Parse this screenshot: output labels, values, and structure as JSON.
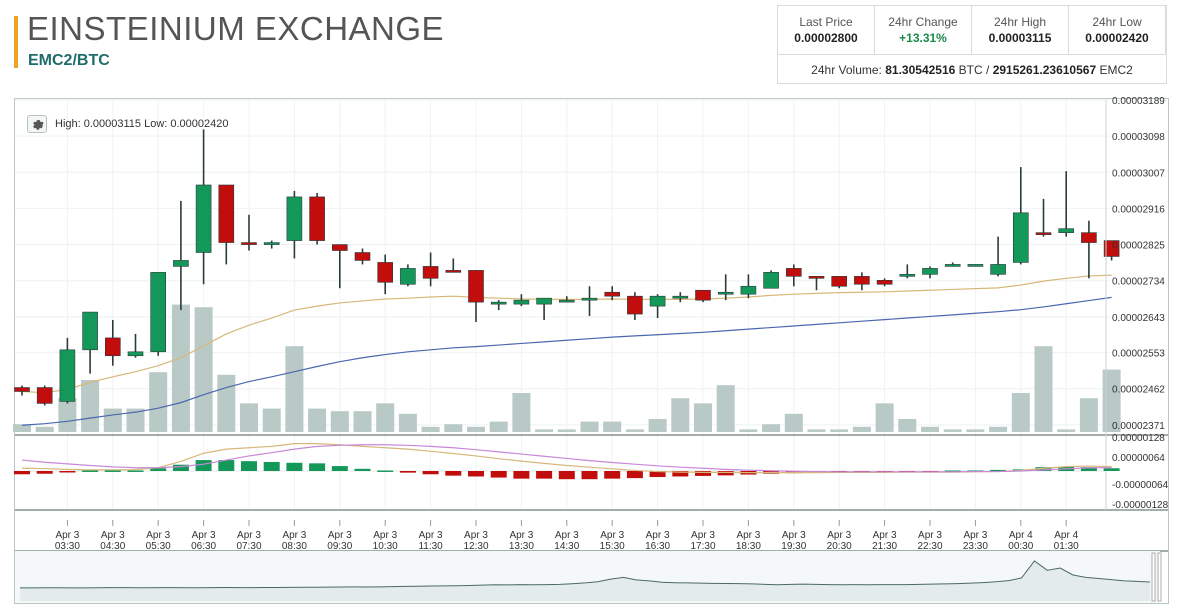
{
  "header": {
    "title": "EINSTEINIUM EXCHANGE",
    "pair": "EMC2/BTC"
  },
  "stats": {
    "items": [
      {
        "label": "Last Price",
        "value": "0.00002800"
      },
      {
        "label": "24hr Change",
        "value": "+13.31%"
      },
      {
        "label": "24hr High",
        "value": "0.00003115"
      },
      {
        "label": "24hr Low",
        "value": "0.00002420"
      }
    ],
    "volume_label": "24hr Volume:",
    "volume_btc": "81.30542516",
    "volume_btc_unit": "BTC",
    "volume_sep": "/",
    "volume_emc2": "2915261.23610567",
    "volume_emc2_unit": "EMC2"
  },
  "colors": {
    "up": "#13985a",
    "down": "#c20d0d",
    "volume": "#b8c9c6",
    "ma_fast": "#d7b87a",
    "ma_slow": "#4a68b0",
    "macd_signal": "#c888d8",
    "accent": "#f0a21f"
  },
  "chart_data": {
    "type": "candlestick",
    "hl_label": "High: 0.00003115  Low: 0.00002420",
    "price_axis_ticks": [
      "0.00003189",
      "0.00003098",
      "0.00003007",
      "0.00002916",
      "0.00002825",
      "0.00002734",
      "0.00002643",
      "0.00002553",
      "0.00002462",
      "0.00002371"
    ],
    "price_range": [
      2.348e-05,
      3.189e-05
    ],
    "macd_axis_ticks": [
      "0.00000128",
      "0.00000064",
      "-0.00000064",
      "-0.00000128"
    ],
    "macd_range": [
      -1.28e-06,
      1.28e-06
    ],
    "time_labels": [
      {
        "d": "Apr 3",
        "t": "03:30"
      },
      {
        "d": "Apr 3",
        "t": "04:30"
      },
      {
        "d": "Apr 3",
        "t": "05:30"
      },
      {
        "d": "Apr 3",
        "t": "06:30"
      },
      {
        "d": "Apr 3",
        "t": "07:30"
      },
      {
        "d": "Apr 3",
        "t": "08:30"
      },
      {
        "d": "Apr 3",
        "t": "09:30"
      },
      {
        "d": "Apr 3",
        "t": "10:30"
      },
      {
        "d": "Apr 3",
        "t": "11:30"
      },
      {
        "d": "Apr 3",
        "t": "12:30"
      },
      {
        "d": "Apr 3",
        "t": "13:30"
      },
      {
        "d": "Apr 3",
        "t": "14:30"
      },
      {
        "d": "Apr 3",
        "t": "15:30"
      },
      {
        "d": "Apr 3",
        "t": "16:30"
      },
      {
        "d": "Apr 3",
        "t": "17:30"
      },
      {
        "d": "Apr 3",
        "t": "18:30"
      },
      {
        "d": "Apr 3",
        "t": "19:30"
      },
      {
        "d": "Apr 3",
        "t": "20:30"
      },
      {
        "d": "Apr 3",
        "t": "21:30"
      },
      {
        "d": "Apr 3",
        "t": "22:30"
      },
      {
        "d": "Apr 3",
        "t": "23:30"
      },
      {
        "d": "Apr 4",
        "t": "00:30"
      },
      {
        "d": "Apr 4",
        "t": "01:30"
      }
    ],
    "candles": [
      {
        "o": 2.465e-05,
        "h": 2.47e-05,
        "l": 2.445e-05,
        "c": 2.455e-05
      },
      {
        "o": 2.465e-05,
        "h": 2.47e-05,
        "l": 2.42e-05,
        "c": 2.425e-05
      },
      {
        "o": 2.43e-05,
        "h": 2.59e-05,
        "l": 2.425e-05,
        "c": 2.56e-05
      },
      {
        "o": 2.56e-05,
        "h": 2.655e-05,
        "l": 2.5e-05,
        "c": 2.655e-05
      },
      {
        "o": 2.59e-05,
        "h": 2.635e-05,
        "l": 2.52e-05,
        "c": 2.545e-05
      },
      {
        "o": 2.545e-05,
        "h": 2.6e-05,
        "l": 2.54e-05,
        "c": 2.555e-05
      },
      {
        "o": 2.555e-05,
        "h": 2.755e-05,
        "l": 2.545e-05,
        "c": 2.755e-05
      },
      {
        "o": 2.77e-05,
        "h": 2.935e-05,
        "l": 2.66e-05,
        "c": 2.785e-05
      },
      {
        "o": 2.805e-05,
        "h": 3.115e-05,
        "l": 2.725e-05,
        "c": 2.975e-05
      },
      {
        "o": 2.975e-05,
        "h": 2.975e-05,
        "l": 2.775e-05,
        "c": 2.83e-05
      },
      {
        "o": 2.83e-05,
        "h": 2.9e-05,
        "l": 2.81e-05,
        "c": 2.825e-05
      },
      {
        "o": 2.825e-05,
        "h": 2.835e-05,
        "l": 2.815e-05,
        "c": 2.83e-05
      },
      {
        "o": 2.835e-05,
        "h": 2.96e-05,
        "l": 2.79e-05,
        "c": 2.945e-05
      },
      {
        "o": 2.945e-05,
        "h": 2.955e-05,
        "l": 2.825e-05,
        "c": 2.835e-05
      },
      {
        "o": 2.825e-05,
        "h": 2.825e-05,
        "l": 2.715e-05,
        "c": 2.81e-05
      },
      {
        "o": 2.805e-05,
        "h": 2.815e-05,
        "l": 2.775e-05,
        "c": 2.785e-05
      },
      {
        "o": 2.78e-05,
        "h": 2.8e-05,
        "l": 2.7e-05,
        "c": 2.73e-05
      },
      {
        "o": 2.725e-05,
        "h": 2.775e-05,
        "l": 2.72e-05,
        "c": 2.765e-05
      },
      {
        "o": 2.77e-05,
        "h": 2.805e-05,
        "l": 2.72e-05,
        "c": 2.74e-05
      },
      {
        "o": 2.76e-05,
        "h": 2.79e-05,
        "l": 2.755e-05,
        "c": 2.755e-05
      },
      {
        "o": 2.76e-05,
        "h": 2.76e-05,
        "l": 2.63e-05,
        "c": 2.68e-05
      },
      {
        "o": 2.675e-05,
        "h": 2.685e-05,
        "l": 2.66e-05,
        "c": 2.68e-05
      },
      {
        "o": 2.675e-05,
        "h": 2.7e-05,
        "l": 2.67e-05,
        "c": 2.685e-05
      },
      {
        "o": 2.675e-05,
        "h": 2.69e-05,
        "l": 2.635e-05,
        "c": 2.69e-05
      },
      {
        "o": 2.685e-05,
        "h": 2.695e-05,
        "l": 2.68e-05,
        "c": 2.685e-05
      },
      {
        "o": 2.69e-05,
        "h": 2.72e-05,
        "l": 2.645e-05,
        "c": 2.69e-05
      },
      {
        "o": 2.705e-05,
        "h": 2.72e-05,
        "l": 2.685e-05,
        "c": 2.695e-05
      },
      {
        "o": 2.695e-05,
        "h": 2.705e-05,
        "l": 2.635e-05,
        "c": 2.65e-05
      },
      {
        "o": 2.67e-05,
        "h": 2.7e-05,
        "l": 2.64e-05,
        "c": 2.695e-05
      },
      {
        "o": 2.695e-05,
        "h": 2.705e-05,
        "l": 2.68e-05,
        "c": 2.695e-05
      },
      {
        "o": 2.71e-05,
        "h": 2.71e-05,
        "l": 2.68e-05,
        "c": 2.685e-05
      },
      {
        "o": 2.705e-05,
        "h": 2.75e-05,
        "l": 2.685e-05,
        "c": 2.705e-05
      },
      {
        "o": 2.7e-05,
        "h": 2.75e-05,
        "l": 2.69e-05,
        "c": 2.72e-05
      },
      {
        "o": 2.715e-05,
        "h": 2.76e-05,
        "l": 2.715e-05,
        "c": 2.755e-05
      },
      {
        "o": 2.765e-05,
        "h": 2.775e-05,
        "l": 2.72e-05,
        "c": 2.745e-05
      },
      {
        "o": 2.745e-05,
        "h": 2.745e-05,
        "l": 2.71e-05,
        "c": 2.74e-05
      },
      {
        "o": 2.745e-05,
        "h": 2.745e-05,
        "l": 2.715e-05,
        "c": 2.72e-05
      },
      {
        "o": 2.745e-05,
        "h": 2.755e-05,
        "l": 2.71e-05,
        "c": 2.725e-05
      },
      {
        "o": 2.735e-05,
        "h": 2.74e-05,
        "l": 2.72e-05,
        "c": 2.725e-05
      },
      {
        "o": 2.745e-05,
        "h": 2.775e-05,
        "l": 2.74e-05,
        "c": 2.75e-05
      },
      {
        "o": 2.75e-05,
        "h": 2.77e-05,
        "l": 2.74e-05,
        "c": 2.765e-05
      },
      {
        "o": 2.775e-05,
        "h": 2.78e-05,
        "l": 2.77e-05,
        "c": 2.775e-05
      },
      {
        "o": 2.775e-05,
        "h": 2.775e-05,
        "l": 2.77e-05,
        "c": 2.775e-05
      },
      {
        "o": 2.75e-05,
        "h": 2.845e-05,
        "l": 2.745e-05,
        "c": 2.775e-05
      },
      {
        "o": 2.78e-05,
        "h": 3.02e-05,
        "l": 2.775e-05,
        "c": 2.905e-05
      },
      {
        "o": 2.855e-05,
        "h": 2.94e-05,
        "l": 2.845e-05,
        "c": 2.85e-05
      },
      {
        "o": 2.855e-05,
        "h": 3.01e-05,
        "l": 2.845e-05,
        "c": 2.865e-05
      },
      {
        "o": 2.855e-05,
        "h": 2.885e-05,
        "l": 2.74e-05,
        "c": 2.83e-05
      },
      {
        "o": 2.835e-05,
        "h": 2.835e-05,
        "l": 2.785e-05,
        "c": 2.795e-05
      }
    ],
    "volume_rel": [
      0.03,
      0.02,
      0.13,
      0.2,
      0.09,
      0.09,
      0.23,
      0.49,
      0.48,
      0.22,
      0.11,
      0.09,
      0.33,
      0.09,
      0.08,
      0.08,
      0.11,
      0.07,
      0.02,
      0.03,
      0.02,
      0.04,
      0.15,
      0.01,
      0.01,
      0.04,
      0.04,
      0.01,
      0.05,
      0.13,
      0.11,
      0.18,
      0.01,
      0.03,
      0.07,
      0.01,
      0.01,
      0.02,
      0.11,
      0.05,
      0.02,
      0.01,
      0.01,
      0.02,
      0.15,
      0.33,
      0.01,
      0.13,
      0.24
    ],
    "ma_fast": [
      2.455e-05,
      2.452e-05,
      2.46e-05,
      2.478e-05,
      2.492e-05,
      2.505e-05,
      2.52e-05,
      2.54e-05,
      2.57e-05,
      2.6e-05,
      2.622e-05,
      2.64e-05,
      2.66e-05,
      2.67e-05,
      2.678e-05,
      2.683e-05,
      2.688e-05,
      2.69e-05,
      2.693e-05,
      2.695e-05,
      2.692e-05,
      2.69e-05,
      2.688e-05,
      2.687e-05,
      2.687e-05,
      2.687e-05,
      2.688e-05,
      2.687e-05,
      2.687e-05,
      2.687e-05,
      2.688e-05,
      2.69e-05,
      2.693e-05,
      2.697e-05,
      2.7e-05,
      2.702e-05,
      2.704e-05,
      2.705e-05,
      2.706e-05,
      2.708e-05,
      2.71e-05,
      2.712e-05,
      2.714e-05,
      2.716e-05,
      2.723e-05,
      2.733e-05,
      2.74e-05,
      2.746e-05,
      2.748e-05
    ],
    "ma_slow": [
      2.37e-05,
      2.374e-05,
      2.38e-05,
      2.388e-05,
      2.396e-05,
      2.403e-05,
      2.413e-05,
      2.427e-05,
      2.447e-05,
      2.465e-05,
      2.48e-05,
      2.492e-05,
      2.505e-05,
      2.518e-05,
      2.53e-05,
      2.54e-05,
      2.548e-05,
      2.555e-05,
      2.56e-05,
      2.565e-05,
      2.568e-05,
      2.572e-05,
      2.576e-05,
      2.58e-05,
      2.584e-05,
      2.588e-05,
      2.592e-05,
      2.595e-05,
      2.598e-05,
      2.601e-05,
      2.604e-05,
      2.608e-05,
      2.612e-05,
      2.616e-05,
      2.62e-05,
      2.624e-05,
      2.628e-05,
      2.632e-05,
      2.636e-05,
      2.64e-05,
      2.644e-05,
      2.648e-05,
      2.652e-05,
      2.656e-05,
      2.661e-05,
      2.668e-05,
      2.676e-05,
      2.684e-05,
      2.692e-05
    ],
    "macd_hist": [
      -1.2e-07,
      -1e-07,
      -2e-08,
      2e-08,
      2e-08,
      2e-08,
      1e-07,
      2.3e-07,
      4e-07,
      4e-07,
      3.6e-07,
      3.3e-07,
      3e-07,
      2.8e-07,
      1.8e-07,
      8e-08,
      2e-08,
      -6e-08,
      -1.2e-07,
      -1.7e-07,
      -2e-07,
      -2.4e-07,
      -2.8e-07,
      -2.8e-07,
      -3e-07,
      -3e-07,
      -2.8e-07,
      -2.6e-07,
      -2.2e-07,
      -2e-07,
      -1.8e-07,
      -1.6e-07,
      -1.3e-07,
      -1e-07,
      -8e-08,
      -6e-08,
      -5e-08,
      -4e-08,
      -4e-08,
      -2e-08,
      -2e-08,
      2e-08,
      2e-08,
      4e-08,
      6e-08,
      1.4e-07,
      1.6e-07,
      1.4e-07,
      1e-07
    ],
    "macd_line": [
      1e-07,
      9e-08,
      6e-08,
      4e-08,
      4e-08,
      5e-08,
      1.2e-07,
      3.5e-07,
      6.5e-07,
      8e-07,
      8.5e-07,
      9e-07,
      1e-06,
      1e-06,
      9.6e-07,
      9e-07,
      8.5e-07,
      8e-07,
      7.2e-07,
      6.4e-07,
      5.5e-07,
      4.5e-07,
      3.6e-07,
      2.8e-07,
      2e-07,
      1.4e-07,
      8e-08,
      2e-08,
      -2e-08,
      -4e-08,
      -5e-08,
      -5e-08,
      -6e-08,
      -6e-08,
      -6e-08,
      -6e-08,
      -5e-08,
      -5e-08,
      -5e-08,
      -4e-08,
      -4e-08,
      -4e-08,
      -3e-08,
      -2e-08,
      2e-08,
      1e-07,
      1.6e-07,
      1.8e-07,
      1.6e-07
    ],
    "signal_line": [
      4e-07,
      3.2e-07,
      2.6e-07,
      2e-07,
      1.5e-07,
      1.2e-07,
      1.2e-07,
      1.6e-07,
      2.5e-07,
      4e-07,
      5.5e-07,
      6.7e-07,
      8e-07,
      9e-07,
      9.4e-07,
      9.6e-07,
      9.6e-07,
      9.4e-07,
      9e-07,
      8.5e-07,
      7.8e-07,
      7e-07,
      6.2e-07,
      5.4e-07,
      4.6e-07,
      3.8e-07,
      3.1e-07,
      2.5e-07,
      1.9e-07,
      1.4e-07,
      1e-07,
      6e-08,
      3e-08,
      1e-08,
      -1e-08,
      -2e-08,
      -3e-08,
      -3e-08,
      -3e-08,
      -3e-08,
      -3e-08,
      -3e-08,
      -2e-08,
      -2e-08,
      0.0,
      4e-08,
      8e-08,
      1.2e-07,
      1.2e-07
    ],
    "navigator": [
      0.1,
      0.1,
      0.11,
      0.11,
      0.1,
      0.1,
      0.11,
      0.12,
      0.12,
      0.11,
      0.11,
      0.12,
      0.12,
      0.11,
      0.11,
      0.12,
      0.13,
      0.12,
      0.12,
      0.13,
      0.13,
      0.14,
      0.15,
      0.15,
      0.16,
      0.17,
      0.18,
      0.17,
      0.18,
      0.2,
      0.22,
      0.24,
      0.26,
      0.27,
      0.28,
      0.3,
      0.33,
      0.36,
      0.35,
      0.37,
      0.36,
      0.38,
      0.4,
      0.45,
      0.52,
      0.62,
      0.85,
      1.0,
      0.78,
      0.7,
      0.58,
      0.54,
      0.52,
      0.5,
      0.48,
      0.47,
      0.46,
      0.44,
      0.4,
      0.36,
      0.4,
      0.42,
      0.4,
      0.38,
      0.36,
      0.37,
      0.36,
      0.38,
      0.37,
      0.38,
      0.4,
      0.42,
      0.44,
      0.46,
      0.5,
      0.55,
      0.62,
      0.72,
      0.95,
      2.4,
      1.6,
      1.8,
      1.2,
      1.0,
      0.9,
      0.8,
      0.7,
      0.65,
      0.6
    ]
  }
}
